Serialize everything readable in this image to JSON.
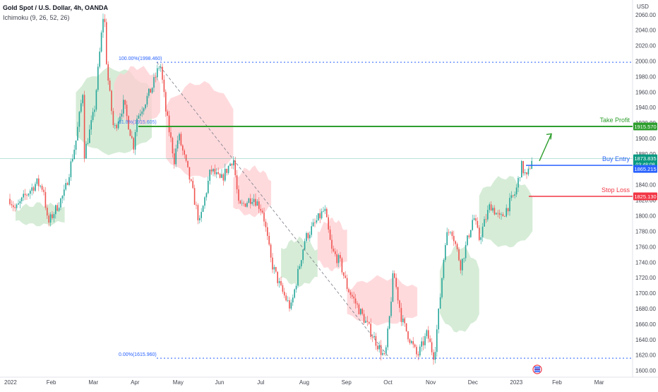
{
  "header": {
    "title": "Gold Spot / U.S. Dollar, 4h, OANDA",
    "indicator": "Ichimoku (9, 26, 52, 26)",
    "currency": "USD"
  },
  "colors": {
    "take_profit": "#2e9e2e",
    "buy_entry": "#2962ff",
    "stop_loss": "#f23645",
    "fib": "#2962ff",
    "candle_up": "#26a69a",
    "candle_down": "#ef5350",
    "cloud_bull": "#c8e6c9",
    "cloud_bear": "#ffcdd2",
    "current_price": "#089981",
    "arrow": "#2e9e2e"
  },
  "chart_data": {
    "type": "candlestick",
    "title": "Gold Spot / U.S. Dollar, 4h, OANDA",
    "x_ticks": [
      "2022",
      "Feb",
      "Mar",
      "Apr",
      "May",
      "Jun",
      "Jul",
      "Aug",
      "Sep",
      "Oct",
      "Nov",
      "Dec",
      "2023",
      "Feb",
      "Mar"
    ],
    "y_ticks": [
      1600,
      1620,
      1640,
      1660,
      1680,
      1700,
      1720,
      1740,
      1760,
      1780,
      1800,
      1820,
      1840,
      1860,
      1880,
      1900,
      1920,
      1940,
      1960,
      1980,
      2000,
      2020,
      2040,
      2060
    ],
    "ylim": [
      1596,
      2068
    ],
    "price_path": [
      [
        "2022",
        1822
      ],
      [
        "Jan 5",
        1808
      ],
      [
        "Jan 12",
        1826
      ],
      [
        "Jan 20",
        1843
      ],
      [
        "Jan 25",
        1835
      ],
      [
        "Jan 28",
        1788
      ],
      [
        "Feb",
        1800
      ],
      [
        "Feb 10",
        1830
      ],
      [
        "Feb 18",
        1897
      ],
      [
        "Feb 24",
        1975
      ],
      [
        "Feb 24",
        1880
      ],
      [
        "Mar",
        1935
      ],
      [
        "Mar 8",
        2070
      ],
      [
        "Mar 10",
        1990
      ],
      [
        "Mar 15",
        1910
      ],
      [
        "Mar 22",
        1945
      ],
      [
        "Mar 29",
        1890
      ],
      [
        "Apr",
        1925
      ],
      [
        "Apr 12",
        1965
      ],
      [
        "Apr 18",
        1998
      ],
      [
        "Apr 22",
        1935
      ],
      [
        "Apr 28",
        1872
      ],
      [
        "May",
        1905
      ],
      [
        "May 10",
        1840
      ],
      [
        "May 16",
        1790
      ],
      [
        "May 24",
        1860
      ],
      [
        "Jun",
        1845
      ],
      [
        "Jun 10",
        1875
      ],
      [
        "Jun 14",
        1810
      ],
      [
        "Jun 24",
        1825
      ],
      [
        "Jul",
        1806
      ],
      [
        "Jul 7",
        1740
      ],
      [
        "Jul 14",
        1705
      ],
      [
        "Jul 21",
        1680
      ],
      [
        "Jul 27",
        1735
      ],
      [
        "Aug",
        1770
      ],
      [
        "Aug 10",
        1795
      ],
      [
        "Aug 15",
        1808
      ],
      [
        "Aug 20",
        1755
      ],
      [
        "Aug 26",
        1740
      ],
      [
        "Sep",
        1708
      ],
      [
        "Sep 15",
        1660
      ],
      [
        "Sep 28",
        1615
      ],
      [
        "Oct",
        1665
      ],
      [
        "Oct 4",
        1728
      ],
      [
        "Oct 10",
        1665
      ],
      [
        "Oct 21",
        1618
      ],
      [
        "Oct 28",
        1648
      ],
      [
        "Nov",
        1628
      ],
      [
        "Nov 3",
        1618
      ],
      [
        "Nov 7",
        1690
      ],
      [
        "Nov 11",
        1770
      ],
      [
        "Nov 15",
        1786
      ],
      [
        "Nov 22",
        1735
      ],
      [
        "Dec",
        1800
      ],
      [
        "Dec 5",
        1770
      ],
      [
        "Dec 13",
        1815
      ],
      [
        "Dec 20",
        1795
      ],
      [
        "2023",
        1830
      ],
      [
        "Jan 5",
        1865
      ],
      [
        "Jan 9",
        1848
      ],
      [
        "Jan 13",
        1878
      ]
    ],
    "cloud_spans": [
      {
        "from": "Jan 5",
        "to": "Feb 10",
        "low": 1788,
        "high": 1815,
        "kind": "bull"
      },
      {
        "from": "Feb 18",
        "to": "Apr 12",
        "low": 1880,
        "high": 1990,
        "kind": "bull"
      },
      {
        "from": "Mar 15",
        "to": "Apr 18",
        "low": 1918,
        "high": 1992,
        "kind": "bear"
      },
      {
        "from": "Apr 22",
        "to": "Jun 10",
        "low": 1850,
        "high": 1972,
        "kind": "bear"
      },
      {
        "from": "Jun 10",
        "to": "Jul 7",
        "low": 1800,
        "high": 1862,
        "kind": "bear"
      },
      {
        "from": "Jul 14",
        "to": "Aug 10",
        "low": 1710,
        "high": 1770,
        "kind": "bull"
      },
      {
        "from": "Aug 10",
        "to": "Sep",
        "low": 1730,
        "high": 1795,
        "kind": "bear"
      },
      {
        "from": "Sep",
        "to": "Oct 21",
        "low": 1660,
        "high": 1720,
        "kind": "bear"
      },
      {
        "from": "Nov 7",
        "to": "Dec 5",
        "low": 1650,
        "high": 1760,
        "kind": "bull"
      },
      {
        "from": "Dec 5",
        "to": "Jan 13",
        "low": 1760,
        "high": 1850,
        "kind": "bull"
      }
    ],
    "fibonacci": [
      {
        "label": "100.00%(1998.460)",
        "value": 1998.46
      },
      {
        "label": "61.8%(1915.605)",
        "value": 1915.605
      },
      {
        "label": "0.00%(1615.960)",
        "value": 1615.96
      }
    ],
    "levels": [
      {
        "name": "Take Profit",
        "value": 1915.57,
        "label": "1915.570",
        "role": "take_profit"
      },
      {
        "name": "Buy Entry",
        "value": 1865.215,
        "label": "1865.215",
        "role": "buy_entry"
      },
      {
        "name": "Stop Loss",
        "value": 1825.13,
        "label": "1825.130",
        "role": "stop_loss"
      }
    ],
    "current_price": {
      "value": 1873.835,
      "label": "1873.835",
      "timer": "03:48:08"
    }
  }
}
